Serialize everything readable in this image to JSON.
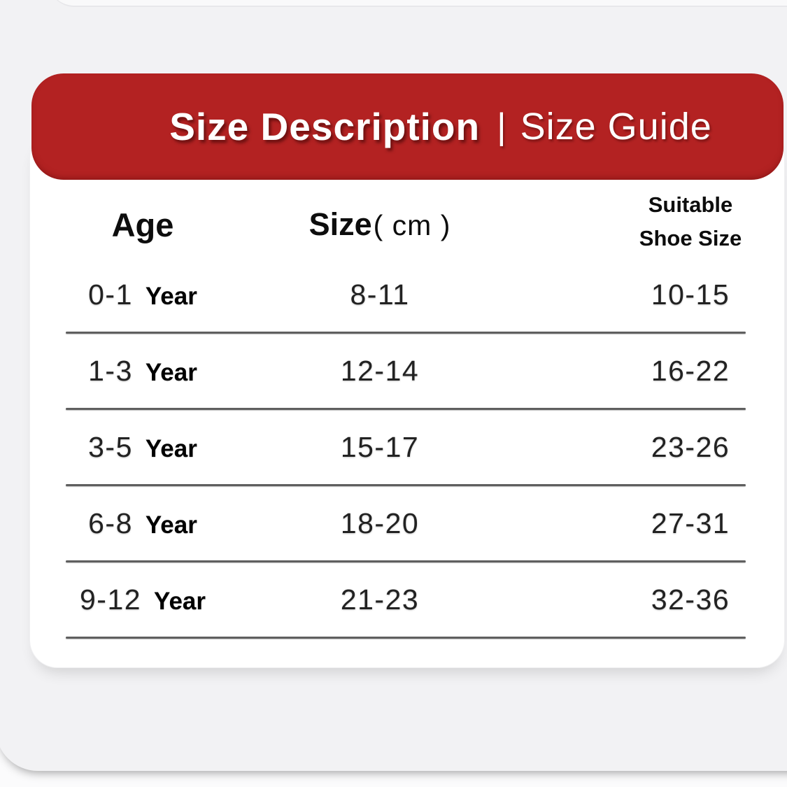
{
  "banner": {
    "title_left": "Size Description",
    "separator": "|",
    "title_right": "Size Guide",
    "bg_color": "#b32222",
    "text_color": "#ffffff"
  },
  "table": {
    "headers": {
      "age": "Age",
      "size_label": "Size",
      "size_unit": "( cm )",
      "shoe_line1": "Suitable",
      "shoe_line2": "Shoe Size"
    },
    "rows": [
      {
        "age": "0-1",
        "age_unit": "Year",
        "size": "8-11",
        "shoe": "10-15"
      },
      {
        "age": "1-3",
        "age_unit": "Year",
        "size": "12-14",
        "shoe": "16-22"
      },
      {
        "age": "3-5",
        "age_unit": "Year",
        "size": "15-17",
        "shoe": "23-26"
      },
      {
        "age": "6-8",
        "age_unit": "Year",
        "size": "18-20",
        "shoe": "27-31"
      },
      {
        "age": "9-12",
        "age_unit": "Year",
        "size": "21-23",
        "shoe": "32-36"
      }
    ]
  },
  "colors": {
    "banner_red": "#b32222",
    "page_gray": "#f2f2f4",
    "card_white": "#ffffff",
    "divider_gray": "#5f5f5f",
    "text_black": "#0d0d0d"
  }
}
